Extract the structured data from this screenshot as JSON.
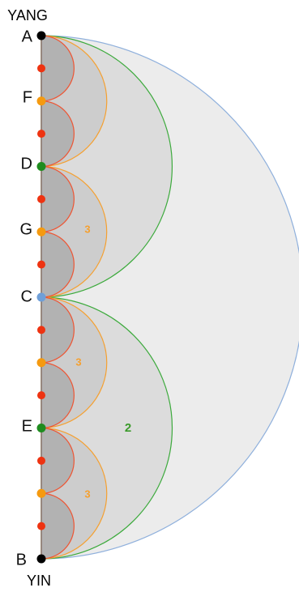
{
  "labels": {
    "top": "YANG",
    "bottom": "YIN",
    "A": "A",
    "F": "F",
    "D": "D",
    "G": "G",
    "C": "C",
    "E": "E",
    "B": "B"
  },
  "region_labels": [
    "3",
    "3",
    "3",
    "2"
  ]
}
